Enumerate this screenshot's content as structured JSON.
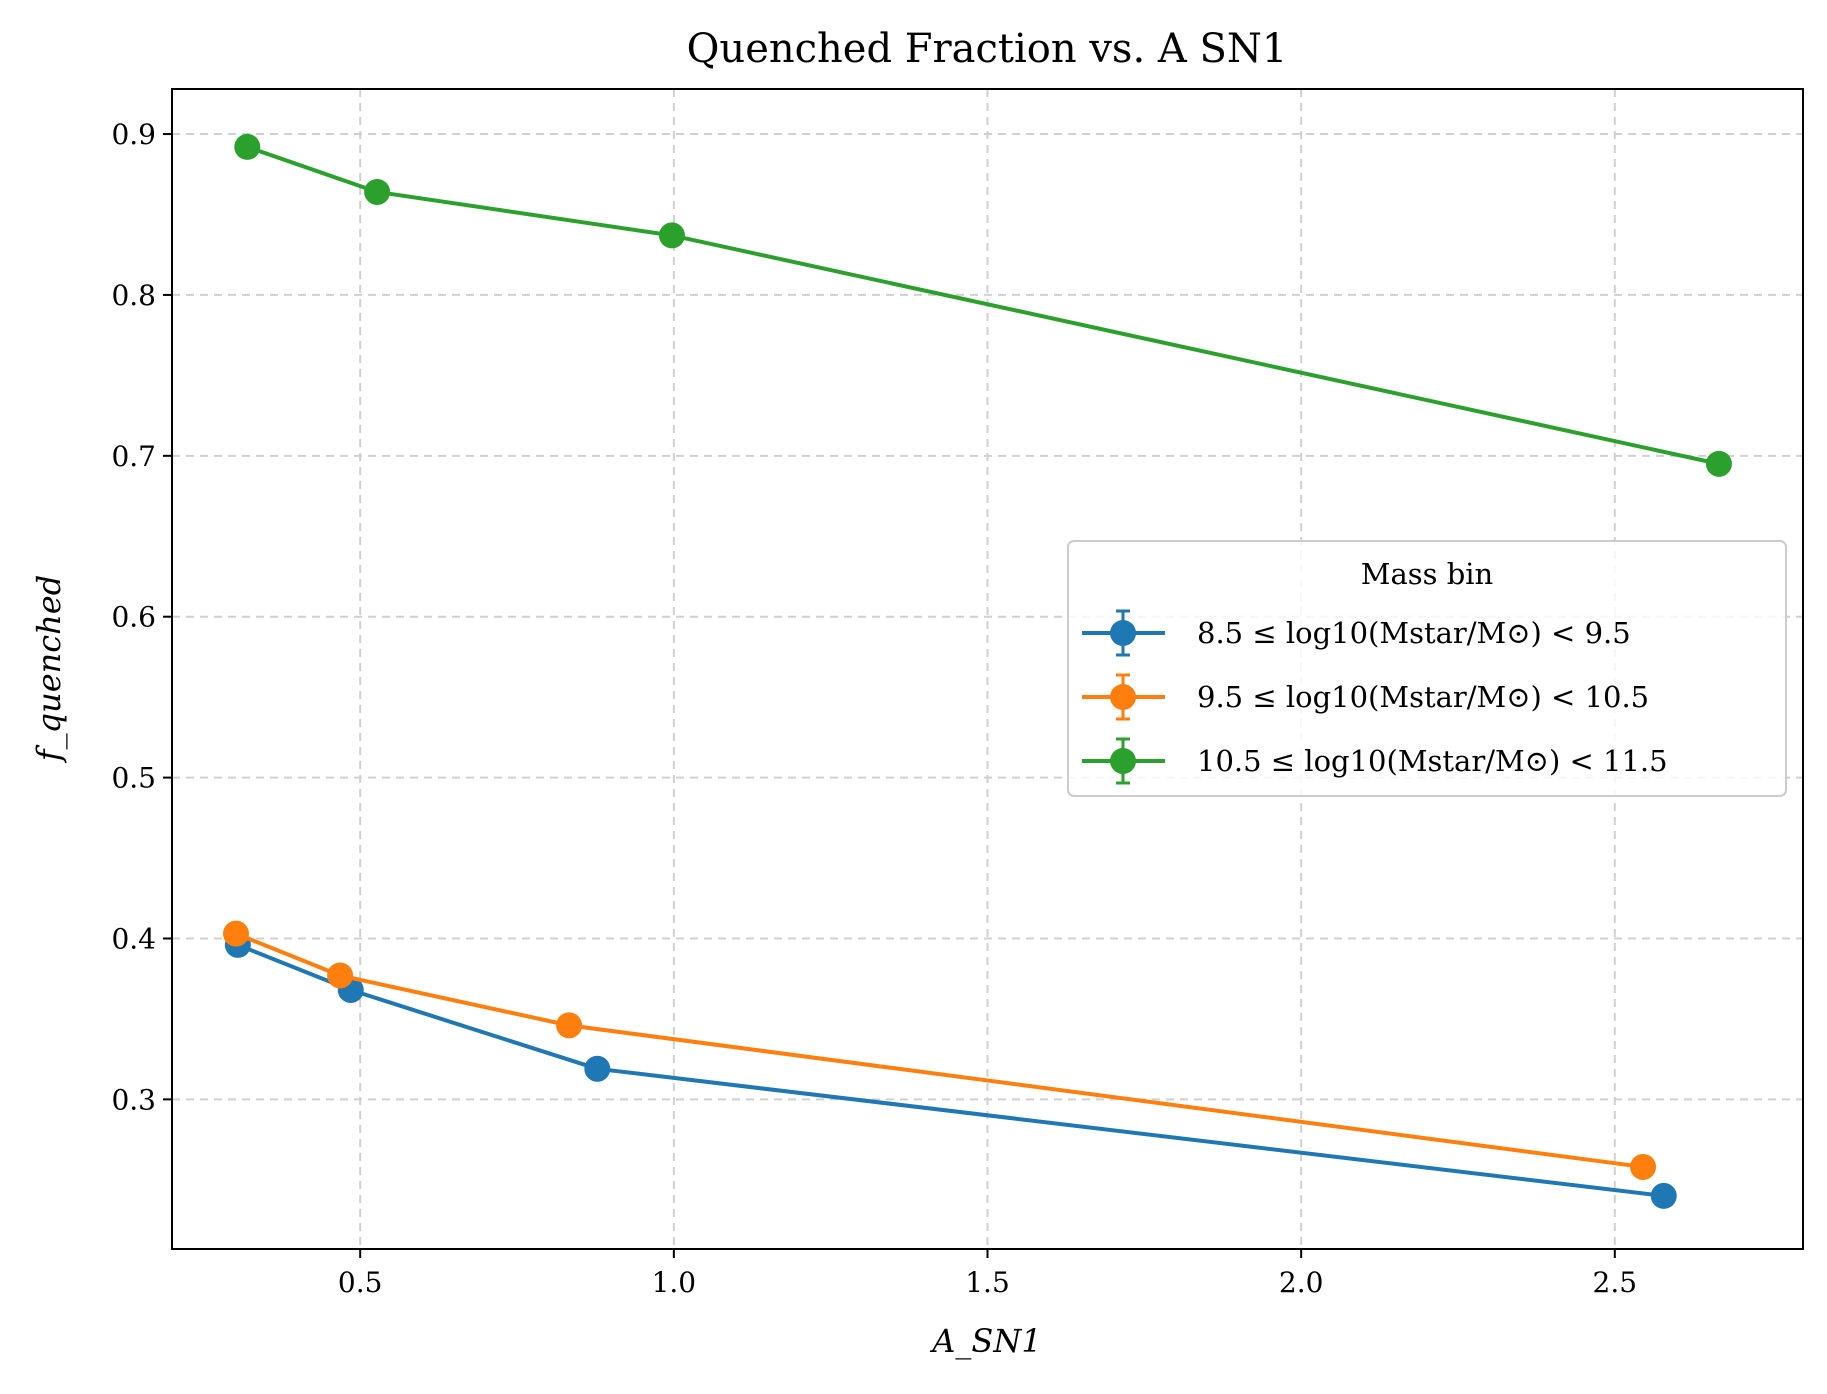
{
  "chart_data": {
    "type": "line",
    "title": "Quenched Fraction vs. A SN1",
    "xlabel": "A_SN1",
    "ylabel": "f_quenched",
    "xlim": [
      0.2,
      2.8
    ],
    "ylim": [
      0.207,
      0.928
    ],
    "xticks": [
      0.5,
      1.0,
      1.5,
      2.0,
      2.5
    ],
    "xtick_labels": [
      "0.5",
      "1.0",
      "1.5",
      "2.0",
      "2.5"
    ],
    "yticks": [
      0.3,
      0.4,
      0.5,
      0.6,
      0.7,
      0.8,
      0.9
    ],
    "ytick_labels": [
      "0.3",
      "0.4",
      "0.5",
      "0.6",
      "0.7",
      "0.8",
      "0.9"
    ],
    "grid": true,
    "markers": true,
    "error_bars": true,
    "legend": {
      "title": "Mass bin",
      "placement": "center-right"
    },
    "series": [
      {
        "name": "8.5 ≤ log10(Mstar/M⊙) < 9.5",
        "color": "#1f77b4",
        "x": [
          0.305,
          0.485,
          0.878,
          2.578
        ],
        "y": [
          0.396,
          0.368,
          0.319,
          0.24
        ]
      },
      {
        "name": "9.5 ≤ log10(Mstar/M⊙) < 10.5",
        "color": "#ff7f0e",
        "x": [
          0.302,
          0.468,
          0.833,
          2.545
        ],
        "y": [
          0.403,
          0.377,
          0.346,
          0.258
        ]
      },
      {
        "name": "10.5 ≤ log10(Mstar/M⊙) < 11.5",
        "color": "#2ca02c",
        "x": [
          0.32,
          0.527,
          0.997,
          2.666
        ],
        "y": [
          0.892,
          0.864,
          0.837,
          0.695
        ]
      }
    ]
  }
}
